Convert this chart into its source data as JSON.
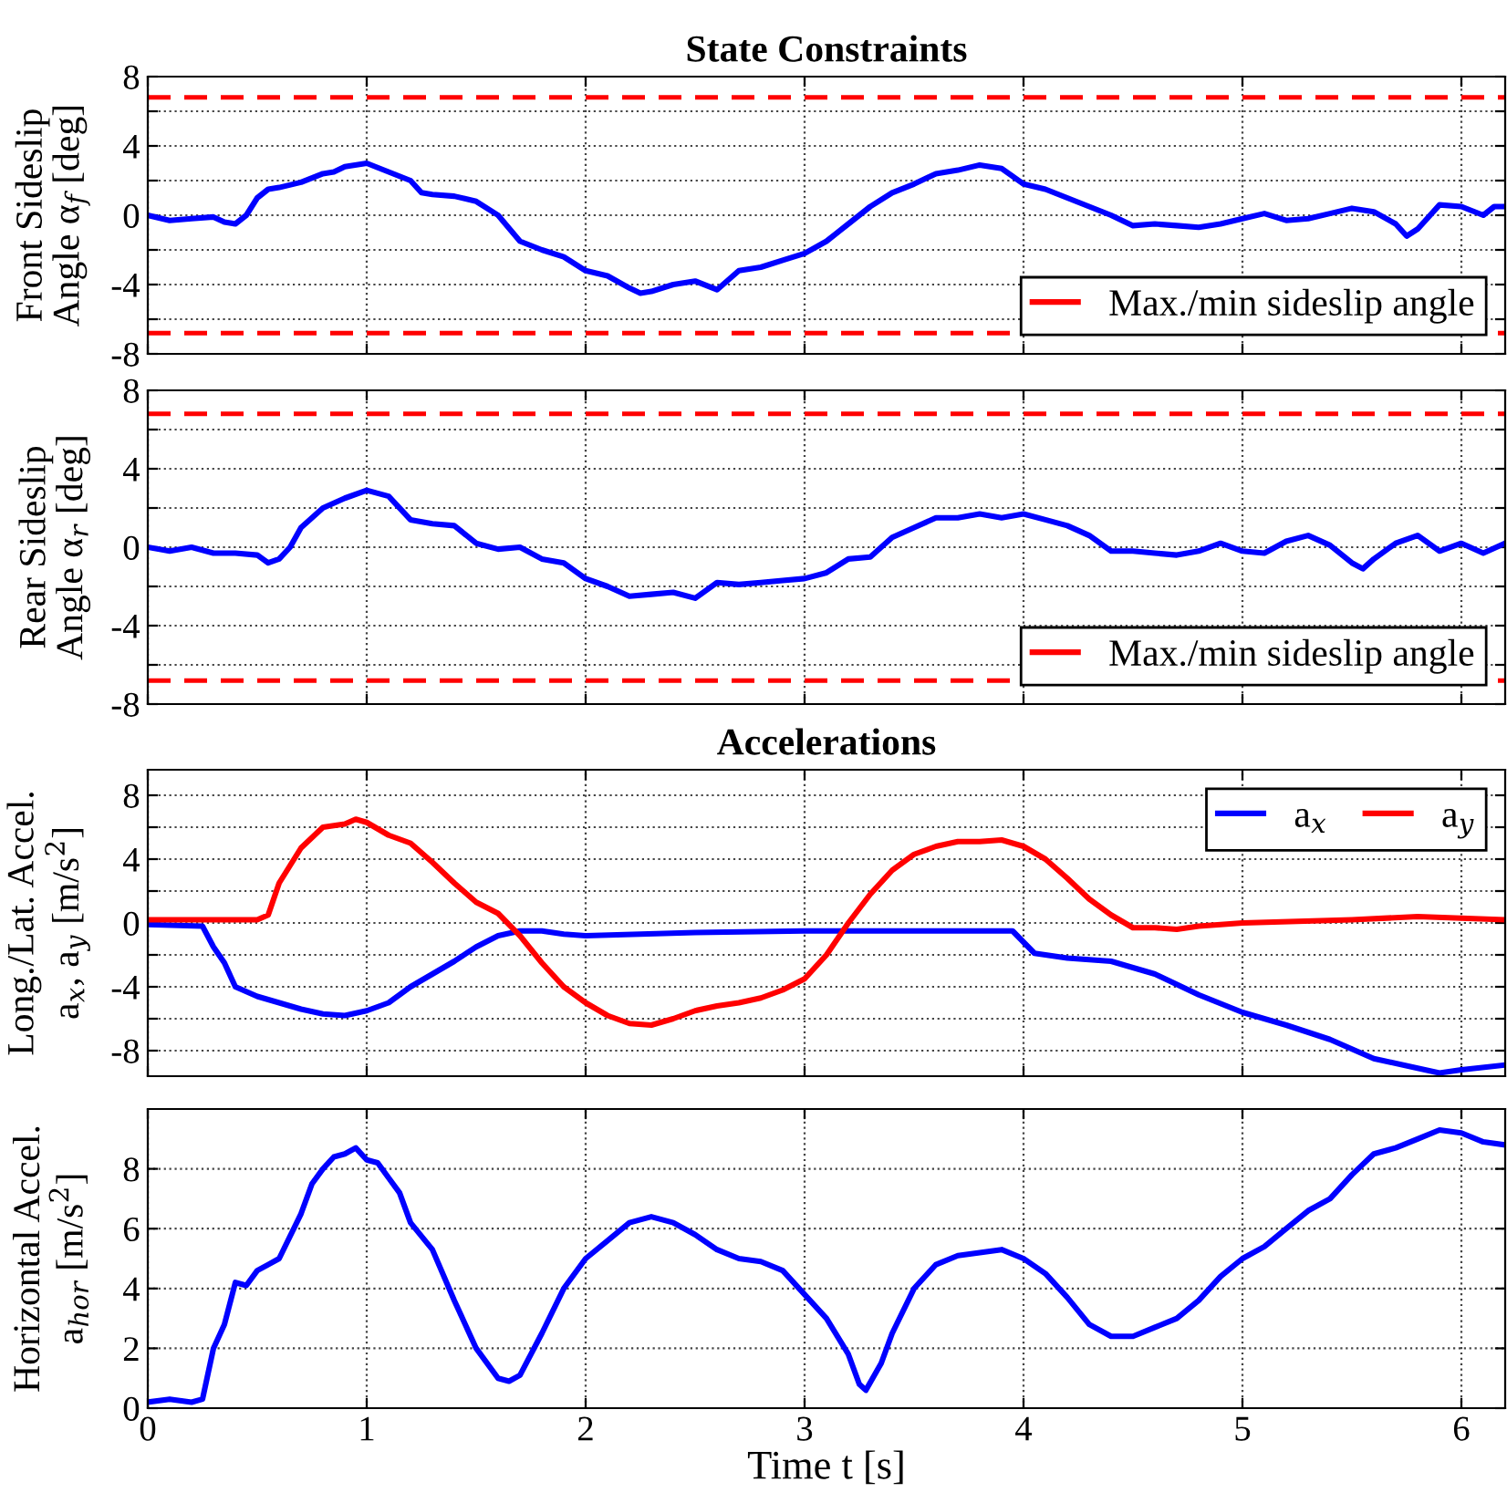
{
  "chart_data": [
    {
      "type": "line",
      "title": "State Constraints",
      "ylabel": "Front Sideslip\nAngle α$_{f}$ [deg]",
      "xlim": [
        0,
        6.2
      ],
      "xticks": [
        0,
        1,
        2,
        3,
        4,
        5,
        6
      ],
      "ylim": [
        -8,
        8
      ],
      "yticks": [
        -8,
        {
          "value": -6,
          "label": null
        },
        -4,
        {
          "value": -2,
          "label": null
        },
        0,
        {
          "value": 2,
          "label": null
        },
        4,
        {
          "value": 6,
          "label": null
        },
        8
      ],
      "tick_labels": "y",
      "grid": true,
      "legend": "bottom right",
      "ref_lines": [
        {
          "axis": "y",
          "value": 6.8,
          "label": "Max./min sideslip angle",
          "color": "#ff0000",
          "line_style": "dashed"
        },
        {
          "axis": "y",
          "value": -6.8,
          "color": "#ff0000",
          "line_style": "dashed"
        }
      ],
      "series": [
        {
          "color": "#0000ff",
          "x": [
            0,
            0.1,
            0.2,
            0.3,
            0.35,
            0.4,
            0.45,
            0.5,
            0.55,
            0.6,
            0.7,
            0.8,
            0.85,
            0.9,
            1.0,
            1.1,
            1.2,
            1.25,
            1.3,
            1.4,
            1.5,
            1.6,
            1.7,
            1.8,
            1.9,
            2.0,
            2.1,
            2.2,
            2.25,
            2.3,
            2.4,
            2.5,
            2.6,
            2.7,
            2.8,
            2.9,
            3.0,
            3.1,
            3.2,
            3.3,
            3.4,
            3.5,
            3.6,
            3.7,
            3.8,
            3.9,
            4.0,
            4.1,
            4.2,
            4.3,
            4.4,
            4.5,
            4.6,
            4.7,
            4.8,
            4.9,
            5.0,
            5.1,
            5.2,
            5.3,
            5.4,
            5.5,
            5.6,
            5.7,
            5.75,
            5.8,
            5.9,
            6.0,
            6.1,
            6.15,
            6.2
          ],
          "values": [
            0,
            -0.3,
            -0.2,
            -0.1,
            -0.4,
            -0.5,
            0,
            1.0,
            1.5,
            1.6,
            1.9,
            2.4,
            2.5,
            2.8,
            3.0,
            2.5,
            2.0,
            1.3,
            1.2,
            1.1,
            0.8,
            0,
            -1.5,
            -2.0,
            -2.4,
            -3.2,
            -3.5,
            -4.2,
            -4.5,
            -4.4,
            -4.0,
            -3.8,
            -4.3,
            -3.2,
            -3.0,
            -2.6,
            -2.2,
            -1.5,
            -0.5,
            0.5,
            1.3,
            1.8,
            2.4,
            2.6,
            2.9,
            2.7,
            1.8,
            1.5,
            1.0,
            0.5,
            0,
            -0.6,
            -0.5,
            -0.6,
            -0.7,
            -0.5,
            -0.2,
            0.1,
            -0.3,
            -0.2,
            0.1,
            0.4,
            0.2,
            -0.5,
            -1.2,
            -0.8,
            0.6,
            0.5,
            0,
            0.5,
            0.5
          ]
        }
      ]
    },
    {
      "type": "line",
      "ylabel": "Rear Sideslip\nAngle α$_{r}$ [deg]",
      "xlim": [
        0,
        6.2
      ],
      "xticks": [
        0,
        1,
        2,
        3,
        4,
        5,
        6
      ],
      "ylim": [
        -8,
        8
      ],
      "yticks": [
        -8,
        {
          "value": -6,
          "label": null
        },
        -4,
        {
          "value": -2,
          "label": null
        },
        0,
        {
          "value": 2,
          "label": null
        },
        4,
        {
          "value": 6,
          "label": null
        },
        8
      ],
      "tick_labels": "y",
      "grid": true,
      "legend": "bottom right",
      "ref_lines": [
        {
          "axis": "y",
          "value": 6.8,
          "label": "Max./min sideslip angle",
          "color": "#ff0000",
          "line_style": "dashed"
        },
        {
          "axis": "y",
          "value": -6.8,
          "color": "#ff0000",
          "line_style": "dashed"
        }
      ],
      "series": [
        {
          "color": "#0000ff",
          "x": [
            0,
            0.1,
            0.2,
            0.3,
            0.4,
            0.5,
            0.55,
            0.6,
            0.65,
            0.7,
            0.8,
            0.9,
            1.0,
            1.1,
            1.2,
            1.3,
            1.4,
            1.5,
            1.6,
            1.7,
            1.8,
            1.9,
            2.0,
            2.1,
            2.2,
            2.3,
            2.4,
            2.5,
            2.6,
            2.7,
            2.8,
            2.9,
            3.0,
            3.1,
            3.2,
            3.3,
            3.4,
            3.5,
            3.6,
            3.7,
            3.8,
            3.9,
            4.0,
            4.1,
            4.2,
            4.3,
            4.4,
            4.5,
            4.6,
            4.7,
            4.8,
            4.9,
            5.0,
            5.1,
            5.2,
            5.3,
            5.4,
            5.5,
            5.55,
            5.6,
            5.7,
            5.8,
            5.9,
            6.0,
            6.1,
            6.2
          ],
          "values": [
            0,
            -0.2,
            0,
            -0.3,
            -0.3,
            -0.4,
            -0.8,
            -0.6,
            0,
            1.0,
            2.0,
            2.5,
            2.9,
            2.6,
            1.4,
            1.2,
            1.1,
            0.2,
            -0.1,
            0,
            -0.6,
            -0.8,
            -1.6,
            -2.0,
            -2.5,
            -2.4,
            -2.3,
            -2.6,
            -1.8,
            -1.9,
            -1.8,
            -1.7,
            -1.6,
            -1.3,
            -0.6,
            -0.5,
            0.5,
            1.0,
            1.5,
            1.5,
            1.7,
            1.5,
            1.7,
            1.4,
            1.1,
            0.6,
            -0.2,
            -0.2,
            -0.3,
            -0.4,
            -0.2,
            0.2,
            -0.2,
            -0.3,
            0.3,
            0.6,
            0.1,
            -0.8,
            -1.1,
            -0.6,
            0.2,
            0.6,
            -0.2,
            0.2,
            -0.3,
            0.2
          ]
        }
      ]
    },
    {
      "type": "line",
      "title": "Accelerations",
      "ylabel": "Long./Lat. Accel.\na$_{x}$, a$_{y}$ [m/s$^{2}$]",
      "xlim": [
        0,
        6.2
      ],
      "xticks": [
        0,
        1,
        2,
        3,
        4,
        5,
        6
      ],
      "ylim": [
        -9.6,
        9.6
      ],
      "yticks": [
        -8,
        {
          "value": -6,
          "label": null
        },
        -4,
        {
          "value": -2,
          "label": null
        },
        0,
        {
          "value": 2,
          "label": null
        },
        4,
        {
          "value": 6,
          "label": null
        },
        8
      ],
      "tick_labels": "y",
      "grid": true,
      "legend": "top right",
      "series": [
        {
          "name": "a$_{x}$",
          "color": "#0000ff",
          "x": [
            0,
            0.25,
            0.3,
            0.35,
            0.4,
            0.5,
            0.6,
            0.7,
            0.8,
            0.9,
            1.0,
            1.1,
            1.2,
            1.3,
            1.4,
            1.5,
            1.6,
            1.7,
            1.8,
            1.9,
            2.0,
            2.5,
            3.0,
            3.5,
            3.8,
            3.95,
            4.05,
            4.2,
            4.4,
            4.6,
            4.8,
            5.0,
            5.2,
            5.4,
            5.6,
            5.8,
            5.9,
            6.0,
            6.2
          ],
          "values": [
            -0.1,
            -0.2,
            -1.5,
            -2.5,
            -4.0,
            -4.6,
            -5.0,
            -5.4,
            -5.7,
            -5.8,
            -5.5,
            -5.0,
            -4.0,
            -3.2,
            -2.4,
            -1.5,
            -0.8,
            -0.5,
            -0.5,
            -0.7,
            -0.8,
            -0.6,
            -0.5,
            -0.5,
            -0.5,
            -0.5,
            -1.9,
            -2.2,
            -2.4,
            -3.2,
            -4.5,
            -5.6,
            -6.4,
            -7.3,
            -8.5,
            -9.1,
            -9.4,
            -9.2,
            -8.9
          ]
        },
        {
          "name": "a$_{y}$",
          "color": "#ff0000",
          "x": [
            0,
            0.5,
            0.55,
            0.6,
            0.7,
            0.8,
            0.9,
            0.95,
            1.0,
            1.1,
            1.2,
            1.3,
            1.4,
            1.5,
            1.6,
            1.7,
            1.8,
            1.9,
            2.0,
            2.1,
            2.2,
            2.3,
            2.4,
            2.5,
            2.6,
            2.7,
            2.8,
            2.9,
            3.0,
            3.1,
            3.2,
            3.3,
            3.4,
            3.5,
            3.6,
            3.7,
            3.8,
            3.9,
            4.0,
            4.1,
            4.2,
            4.3,
            4.4,
            4.5,
            4.6,
            4.7,
            4.8,
            5.0,
            5.5,
            5.8,
            6.0,
            6.2
          ],
          "values": [
            0.2,
            0.2,
            0.5,
            2.5,
            4.7,
            6.0,
            6.2,
            6.5,
            6.3,
            5.5,
            5.0,
            3.8,
            2.5,
            1.3,
            0.6,
            -0.8,
            -2.5,
            -4.0,
            -5.0,
            -5.8,
            -6.3,
            -6.4,
            -6.0,
            -5.5,
            -5.2,
            -5.0,
            -4.7,
            -4.2,
            -3.5,
            -2.0,
            0,
            1.8,
            3.3,
            4.3,
            4.8,
            5.1,
            5.1,
            5.2,
            4.8,
            4.0,
            2.8,
            1.5,
            0.5,
            -0.3,
            -0.3,
            -0.4,
            -0.2,
            0,
            0.2,
            0.4,
            0.3,
            0.2
          ]
        }
      ]
    },
    {
      "type": "line",
      "xlabel": "Time t [s]",
      "ylabel": "Horizontal Accel.\na$_{hor}$ [m/s$^{2}$]",
      "xlim": [
        0,
        6.2
      ],
      "xticks": [
        0,
        1,
        2,
        3,
        4,
        5,
        6
      ],
      "ylim": [
        0,
        10
      ],
      "yticks": [
        0,
        2,
        4,
        6,
        8
      ],
      "grid": true,
      "series": [
        {
          "color": "#0000ff",
          "x": [
            0,
            0.1,
            0.2,
            0.25,
            0.3,
            0.35,
            0.4,
            0.45,
            0.5,
            0.55,
            0.6,
            0.7,
            0.75,
            0.8,
            0.85,
            0.9,
            0.95,
            1.0,
            1.05,
            1.1,
            1.15,
            1.2,
            1.3,
            1.4,
            1.5,
            1.6,
            1.65,
            1.7,
            1.8,
            1.9,
            2.0,
            2.1,
            2.2,
            2.3,
            2.4,
            2.5,
            2.6,
            2.7,
            2.8,
            2.9,
            3.0,
            3.1,
            3.2,
            3.25,
            3.28,
            3.35,
            3.4,
            3.5,
            3.6,
            3.7,
            3.8,
            3.9,
            4.0,
            4.1,
            4.2,
            4.3,
            4.4,
            4.5,
            4.6,
            4.7,
            4.8,
            4.9,
            5.0,
            5.1,
            5.2,
            5.3,
            5.4,
            5.5,
            5.6,
            5.7,
            5.8,
            5.9,
            6.0,
            6.1,
            6.2
          ],
          "values": [
            0.2,
            0.3,
            0.2,
            0.3,
            2.0,
            2.8,
            4.2,
            4.1,
            4.6,
            4.8,
            5.0,
            6.5,
            7.5,
            8.0,
            8.4,
            8.5,
            8.7,
            8.3,
            8.2,
            7.7,
            7.2,
            6.2,
            5.3,
            3.6,
            2.0,
            1.0,
            0.9,
            1.1,
            2.5,
            4.0,
            5.0,
            5.6,
            6.2,
            6.4,
            6.2,
            5.8,
            5.3,
            5.0,
            4.9,
            4.6,
            3.8,
            3.0,
            1.8,
            0.8,
            0.6,
            1.5,
            2.5,
            4.0,
            4.8,
            5.1,
            5.2,
            5.3,
            5.0,
            4.5,
            3.7,
            2.8,
            2.4,
            2.4,
            2.7,
            3.0,
            3.6,
            4.4,
            5.0,
            5.4,
            6.0,
            6.6,
            7.0,
            7.8,
            8.5,
            8.7,
            9.0,
            9.3,
            9.2,
            8.9,
            8.8
          ]
        }
      ]
    }
  ]
}
